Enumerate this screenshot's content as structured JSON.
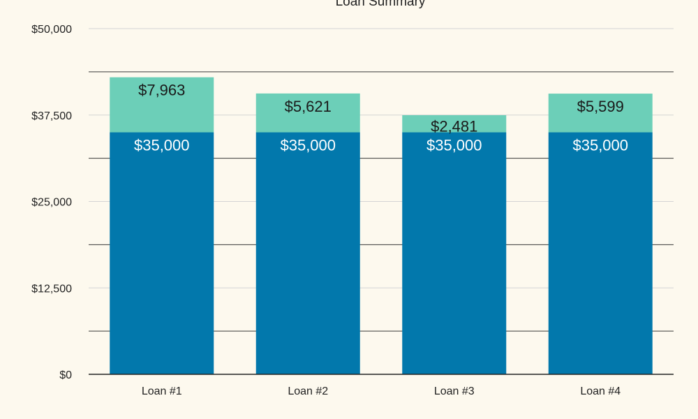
{
  "chart_data": {
    "type": "bar",
    "stacked": true,
    "title": "Loan Summary",
    "categories": [
      "Loan #1",
      "Loan #2",
      "Loan #3",
      "Loan #4"
    ],
    "series": [
      {
        "values": [
          35000,
          35000,
          35000,
          35000
        ],
        "labels": [
          "$35,000",
          "$35,000",
          "$35,000",
          "$35,000"
        ],
        "color": "#0278ac"
      },
      {
        "values": [
          7963,
          5621,
          2481,
          5599
        ],
        "labels": [
          "$7,963",
          "$5,621",
          "$2,481",
          "$5,599"
        ],
        "color": "#6ccfb8"
      }
    ],
    "ylim": [
      0,
      50000
    ],
    "yticks": [
      0,
      12500,
      25000,
      37500,
      50000
    ],
    "ytick_labels": [
      "$0",
      "$12,500",
      "$25,000",
      "$37,500",
      "$50,000"
    ],
    "grid": true,
    "colors": {
      "background": "#fdf9ee",
      "major_grid": "#d4d4d4",
      "minor_grid": "#3a3a3a",
      "axis": "#222222"
    }
  }
}
